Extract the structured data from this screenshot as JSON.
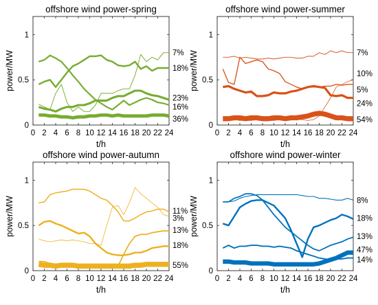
{
  "chart_data": [
    {
      "type": "line",
      "title": "offshore wind power-spring",
      "xlabel": "t/h",
      "ylabel": "power/MW",
      "xlim": [
        0,
        24
      ],
      "ylim": [
        0,
        1.2
      ],
      "xticks": [
        0,
        2,
        4,
        6,
        8,
        10,
        12,
        14,
        16,
        18,
        20,
        22,
        24
      ],
      "yticks": [
        0,
        0.5,
        1
      ],
      "ytick_labels": [
        "0",
        "0.5",
        "1"
      ],
      "color": "#77AC30",
      "grid": false,
      "x": [
        1,
        2,
        3,
        4,
        5,
        6,
        7,
        8,
        9,
        10,
        11,
        12,
        13,
        14,
        15,
        16,
        17,
        18,
        19,
        20,
        21,
        22,
        23,
        24
      ],
      "series": [
        {
          "label": "7%",
          "label_y": 0.8,
          "weight": 0.07,
          "values": [
            0.23,
            0.2,
            0.17,
            0.35,
            0.45,
            0.25,
            0.15,
            0.2,
            0.15,
            0.15,
            0.22,
            0.35,
            0.35,
            0.35,
            0.38,
            0.4,
            0.4,
            0.55,
            0.78,
            0.7,
            0.75,
            0.72,
            0.8,
            0.8
          ]
        },
        {
          "label": "18%",
          "label_y": 0.63,
          "weight": 0.18,
          "values": [
            0.45,
            0.48,
            0.5,
            0.42,
            0.5,
            0.58,
            0.65,
            0.68,
            0.72,
            0.76,
            0.76,
            0.77,
            0.72,
            0.7,
            0.66,
            0.65,
            0.66,
            0.7,
            0.62,
            0.65,
            0.6,
            0.63,
            0.63,
            0.63
          ]
        },
        {
          "label": "23%",
          "label_y": 0.3,
          "weight": 0.23,
          "values": [
            0.2,
            0.18,
            0.17,
            0.15,
            0.18,
            0.2,
            0.2,
            0.22,
            0.22,
            0.24,
            0.27,
            0.27,
            0.27,
            0.3,
            0.32,
            0.32,
            0.35,
            0.38,
            0.38,
            0.35,
            0.33,
            0.32,
            0.3,
            0.28
          ]
        },
        {
          "label": "16%",
          "label_y": 0.2,
          "weight": 0.16,
          "values": [
            0.7,
            0.72,
            0.77,
            0.74,
            0.7,
            0.63,
            0.55,
            0.48,
            0.4,
            0.34,
            0.28,
            0.24,
            0.2,
            0.17,
            0.22,
            0.27,
            0.22,
            0.25,
            0.28,
            0.3,
            0.28,
            0.25,
            0.24,
            0.22
          ]
        },
        {
          "label": "36%",
          "label_y": 0.07,
          "weight": 0.36,
          "values": [
            0.11,
            0.11,
            0.1,
            0.1,
            0.09,
            0.09,
            0.08,
            0.09,
            0.09,
            0.1,
            0.1,
            0.11,
            0.11,
            0.1,
            0.11,
            0.1,
            0.1,
            0.1,
            0.1,
            0.1,
            0.11,
            0.11,
            0.11,
            0.1
          ]
        }
      ]
    },
    {
      "type": "line",
      "title": "offshore wind power-summer",
      "xlabel": "t/h",
      "ylabel": "power/MW",
      "xlim": [
        0,
        24
      ],
      "ylim": [
        0,
        1.2
      ],
      "xticks": [
        0,
        2,
        4,
        6,
        8,
        10,
        12,
        14,
        16,
        18,
        20,
        22,
        24
      ],
      "yticks": [
        0,
        0.5,
        1
      ],
      "ytick_labels": [
        "0",
        "0.5",
        "1"
      ],
      "color": "#D95319",
      "grid": false,
      "x": [
        1,
        2,
        3,
        4,
        5,
        6,
        7,
        8,
        9,
        10,
        11,
        12,
        13,
        14,
        15,
        16,
        17,
        18,
        19,
        20,
        21,
        22,
        23,
        24
      ],
      "series": [
        {
          "label": "7%",
          "label_y": 0.8,
          "weight": 0.07,
          "values": [
            0.75,
            0.75,
            0.76,
            0.74,
            0.75,
            0.74,
            0.73,
            0.73,
            0.74,
            0.73,
            0.74,
            0.75,
            0.75,
            0.74,
            0.74,
            0.76,
            0.76,
            0.8,
            0.78,
            0.82,
            0.8,
            0.82,
            0.8,
            0.8
          ]
        },
        {
          "label": "10%",
          "label_y": 0.57,
          "weight": 0.1,
          "values": [
            0.62,
            0.47,
            0.45,
            0.75,
            0.68,
            0.7,
            0.72,
            0.7,
            0.62,
            0.6,
            0.57,
            0.48,
            0.45,
            0.42,
            0.4,
            0.42,
            0.42,
            0.42,
            0.43,
            0.43,
            0.45,
            0.44,
            0.45,
            0.45
          ]
        },
        {
          "label": "5%",
          "label_y": 0.39,
          "weight": 0.05,
          "values": [
            0.05,
            0.05,
            0.06,
            0.05,
            0.05,
            0.05,
            0.06,
            0.05,
            0.05,
            0.05,
            0.06,
            0.05,
            0.06,
            0.06,
            0.06,
            0.05,
            0.06,
            0.1,
            0.2,
            0.3,
            0.42,
            0.45,
            0.48,
            0.5
          ]
        },
        {
          "label": "24%",
          "label_y": 0.24,
          "weight": 0.24,
          "values": [
            0.42,
            0.43,
            0.4,
            0.38,
            0.36,
            0.37,
            0.32,
            0.32,
            0.33,
            0.36,
            0.35,
            0.35,
            0.37,
            0.38,
            0.4,
            0.42,
            0.43,
            0.42,
            0.41,
            0.33,
            0.32,
            0.33,
            0.3,
            0.3
          ]
        },
        {
          "label": "54%",
          "label_y": 0.06,
          "weight": 0.54,
          "values": [
            0.07,
            0.07,
            0.08,
            0.08,
            0.07,
            0.08,
            0.08,
            0.07,
            0.07,
            0.08,
            0.08,
            0.07,
            0.08,
            0.08,
            0.09,
            0.1,
            0.12,
            0.13,
            0.12,
            0.1,
            0.08,
            0.08,
            0.07,
            0.07
          ]
        }
      ]
    },
    {
      "type": "line",
      "title": "offshore wind power-autumn",
      "xlabel": "t/h",
      "ylabel": "power/MW",
      "xlim": [
        0,
        24
      ],
      "ylim": [
        0,
        1.2
      ],
      "xticks": [
        0,
        2,
        4,
        6,
        8,
        10,
        12,
        14,
        16,
        18,
        20,
        22,
        24
      ],
      "yticks": [
        0,
        0.5,
        1
      ],
      "ytick_labels": [
        "0",
        "0.5",
        "1"
      ],
      "color": "#EDB120",
      "grid": false,
      "x": [
        1,
        2,
        3,
        4,
        5,
        6,
        7,
        8,
        9,
        10,
        11,
        12,
        13,
        14,
        15,
        16,
        17,
        18,
        19,
        20,
        21,
        22,
        23,
        24
      ],
      "series": [
        {
          "label": "11%",
          "label_y": 0.66,
          "weight": 0.11,
          "values": [
            0.75,
            0.76,
            0.84,
            0.86,
            0.87,
            0.88,
            0.9,
            0.9,
            0.9,
            0.88,
            0.84,
            0.8,
            0.78,
            0.72,
            0.65,
            0.55,
            0.55,
            0.58,
            0.62,
            0.65,
            0.66,
            0.68,
            0.68,
            0.65
          ]
        },
        {
          "label": "3%",
          "label_y": 0.58,
          "weight": 0.03,
          "values": [
            0.35,
            0.33,
            0.32,
            0.33,
            0.34,
            0.33,
            0.34,
            0.33,
            0.32,
            0.3,
            0.3,
            0.28,
            0.5,
            0.7,
            0.72,
            0.62,
            0.75,
            0.92,
            0.85,
            0.8,
            0.75,
            0.7,
            0.62,
            0.6
          ]
        },
        {
          "label": "13%",
          "label_y": 0.45,
          "weight": 0.13,
          "values": [
            0.1,
            0.1,
            0.08,
            0.07,
            0.07,
            0.06,
            0.06,
            0.06,
            0.06,
            0.06,
            0.05,
            0.05,
            0.05,
            0.05,
            0.05,
            0.18,
            0.3,
            0.38,
            0.4,
            0.4,
            0.42,
            0.43,
            0.44,
            0.44
          ]
        },
        {
          "label": "18%",
          "label_y": 0.28,
          "weight": 0.18,
          "values": [
            0.5,
            0.54,
            0.55,
            0.52,
            0.5,
            0.47,
            0.44,
            0.41,
            0.42,
            0.38,
            0.3,
            0.25,
            0.2,
            0.18,
            0.17,
            0.17,
            0.18,
            0.2,
            0.2,
            0.22,
            0.25,
            0.26,
            0.27,
            0.27
          ]
        },
        {
          "label": "55%",
          "label_y": 0.06,
          "weight": 0.55,
          "values": [
            0.07,
            0.06,
            0.06,
            0.05,
            0.06,
            0.06,
            0.06,
            0.05,
            0.05,
            0.05,
            0.05,
            0.05,
            0.05,
            0.05,
            0.05,
            0.05,
            0.05,
            0.06,
            0.06,
            0.07,
            0.07,
            0.07,
            0.07,
            0.07
          ]
        }
      ]
    },
    {
      "type": "line",
      "title": "offshore wind power-winter",
      "xlabel": "t/h",
      "ylabel": "power/MW",
      "xlim": [
        0,
        24
      ],
      "ylim": [
        0,
        1.2
      ],
      "xticks": [
        0,
        2,
        4,
        6,
        8,
        10,
        12,
        14,
        16,
        18,
        20,
        22,
        24
      ],
      "yticks": [
        0,
        0.5,
        1
      ],
      "ytick_labels": [
        "0",
        "0.5",
        "1"
      ],
      "color": "#0072BD",
      "grid": false,
      "x": [
        1,
        2,
        3,
        4,
        5,
        6,
        7,
        8,
        9,
        10,
        11,
        12,
        13,
        14,
        15,
        16,
        17,
        18,
        19,
        20,
        21,
        22,
        23,
        24
      ],
      "series": [
        {
          "label": "8%",
          "label_y": 0.78,
          "weight": 0.08,
          "values": [
            0.76,
            0.76,
            0.77,
            0.8,
            0.82,
            0.83,
            0.84,
            0.84,
            0.84,
            0.84,
            0.84,
            0.84,
            0.84,
            0.84,
            0.83,
            0.82,
            0.82,
            0.8,
            0.8,
            0.79,
            0.78,
            0.78,
            0.8,
            0.78
          ]
        },
        {
          "label": "18%",
          "label_y": 0.58,
          "weight": 0.18,
          "values": [
            0.52,
            0.5,
            0.6,
            0.7,
            0.74,
            0.77,
            0.78,
            0.78,
            0.75,
            0.72,
            0.65,
            0.58,
            0.45,
            0.3,
            0.15,
            0.35,
            0.48,
            0.5,
            0.53,
            0.56,
            0.58,
            0.62,
            0.6,
            0.57
          ]
        },
        {
          "label": "13%",
          "label_y": 0.38,
          "weight": 0.13,
          "values": [
            0.76,
            0.76,
            0.8,
            0.82,
            0.85,
            0.85,
            0.83,
            0.78,
            0.7,
            0.62,
            0.55,
            0.48,
            0.43,
            0.38,
            0.33,
            0.28,
            0.24,
            0.22,
            0.25,
            0.28,
            0.3,
            0.32,
            0.35,
            0.37
          ]
        },
        {
          "label": "47%",
          "label_y": 0.23,
          "weight": 0.47,
          "values": [
            0.1,
            0.1,
            0.09,
            0.09,
            0.09,
            0.08,
            0.08,
            0.08,
            0.08,
            0.07,
            0.07,
            0.07,
            0.07,
            0.07,
            0.07,
            0.07,
            0.07,
            0.08,
            0.1,
            0.12,
            0.14,
            0.17,
            0.2,
            0.2
          ]
        },
        {
          "label": "14%",
          "label_y": 0.12,
          "weight": 0.14,
          "values": [
            0.25,
            0.28,
            0.25,
            0.27,
            0.27,
            0.28,
            0.28,
            0.27,
            0.27,
            0.26,
            0.27,
            0.26,
            0.25,
            0.22,
            0.2,
            0.18,
            0.16,
            0.14,
            0.13,
            0.12,
            0.13,
            0.13,
            0.14,
            0.14
          ]
        }
      ]
    }
  ]
}
